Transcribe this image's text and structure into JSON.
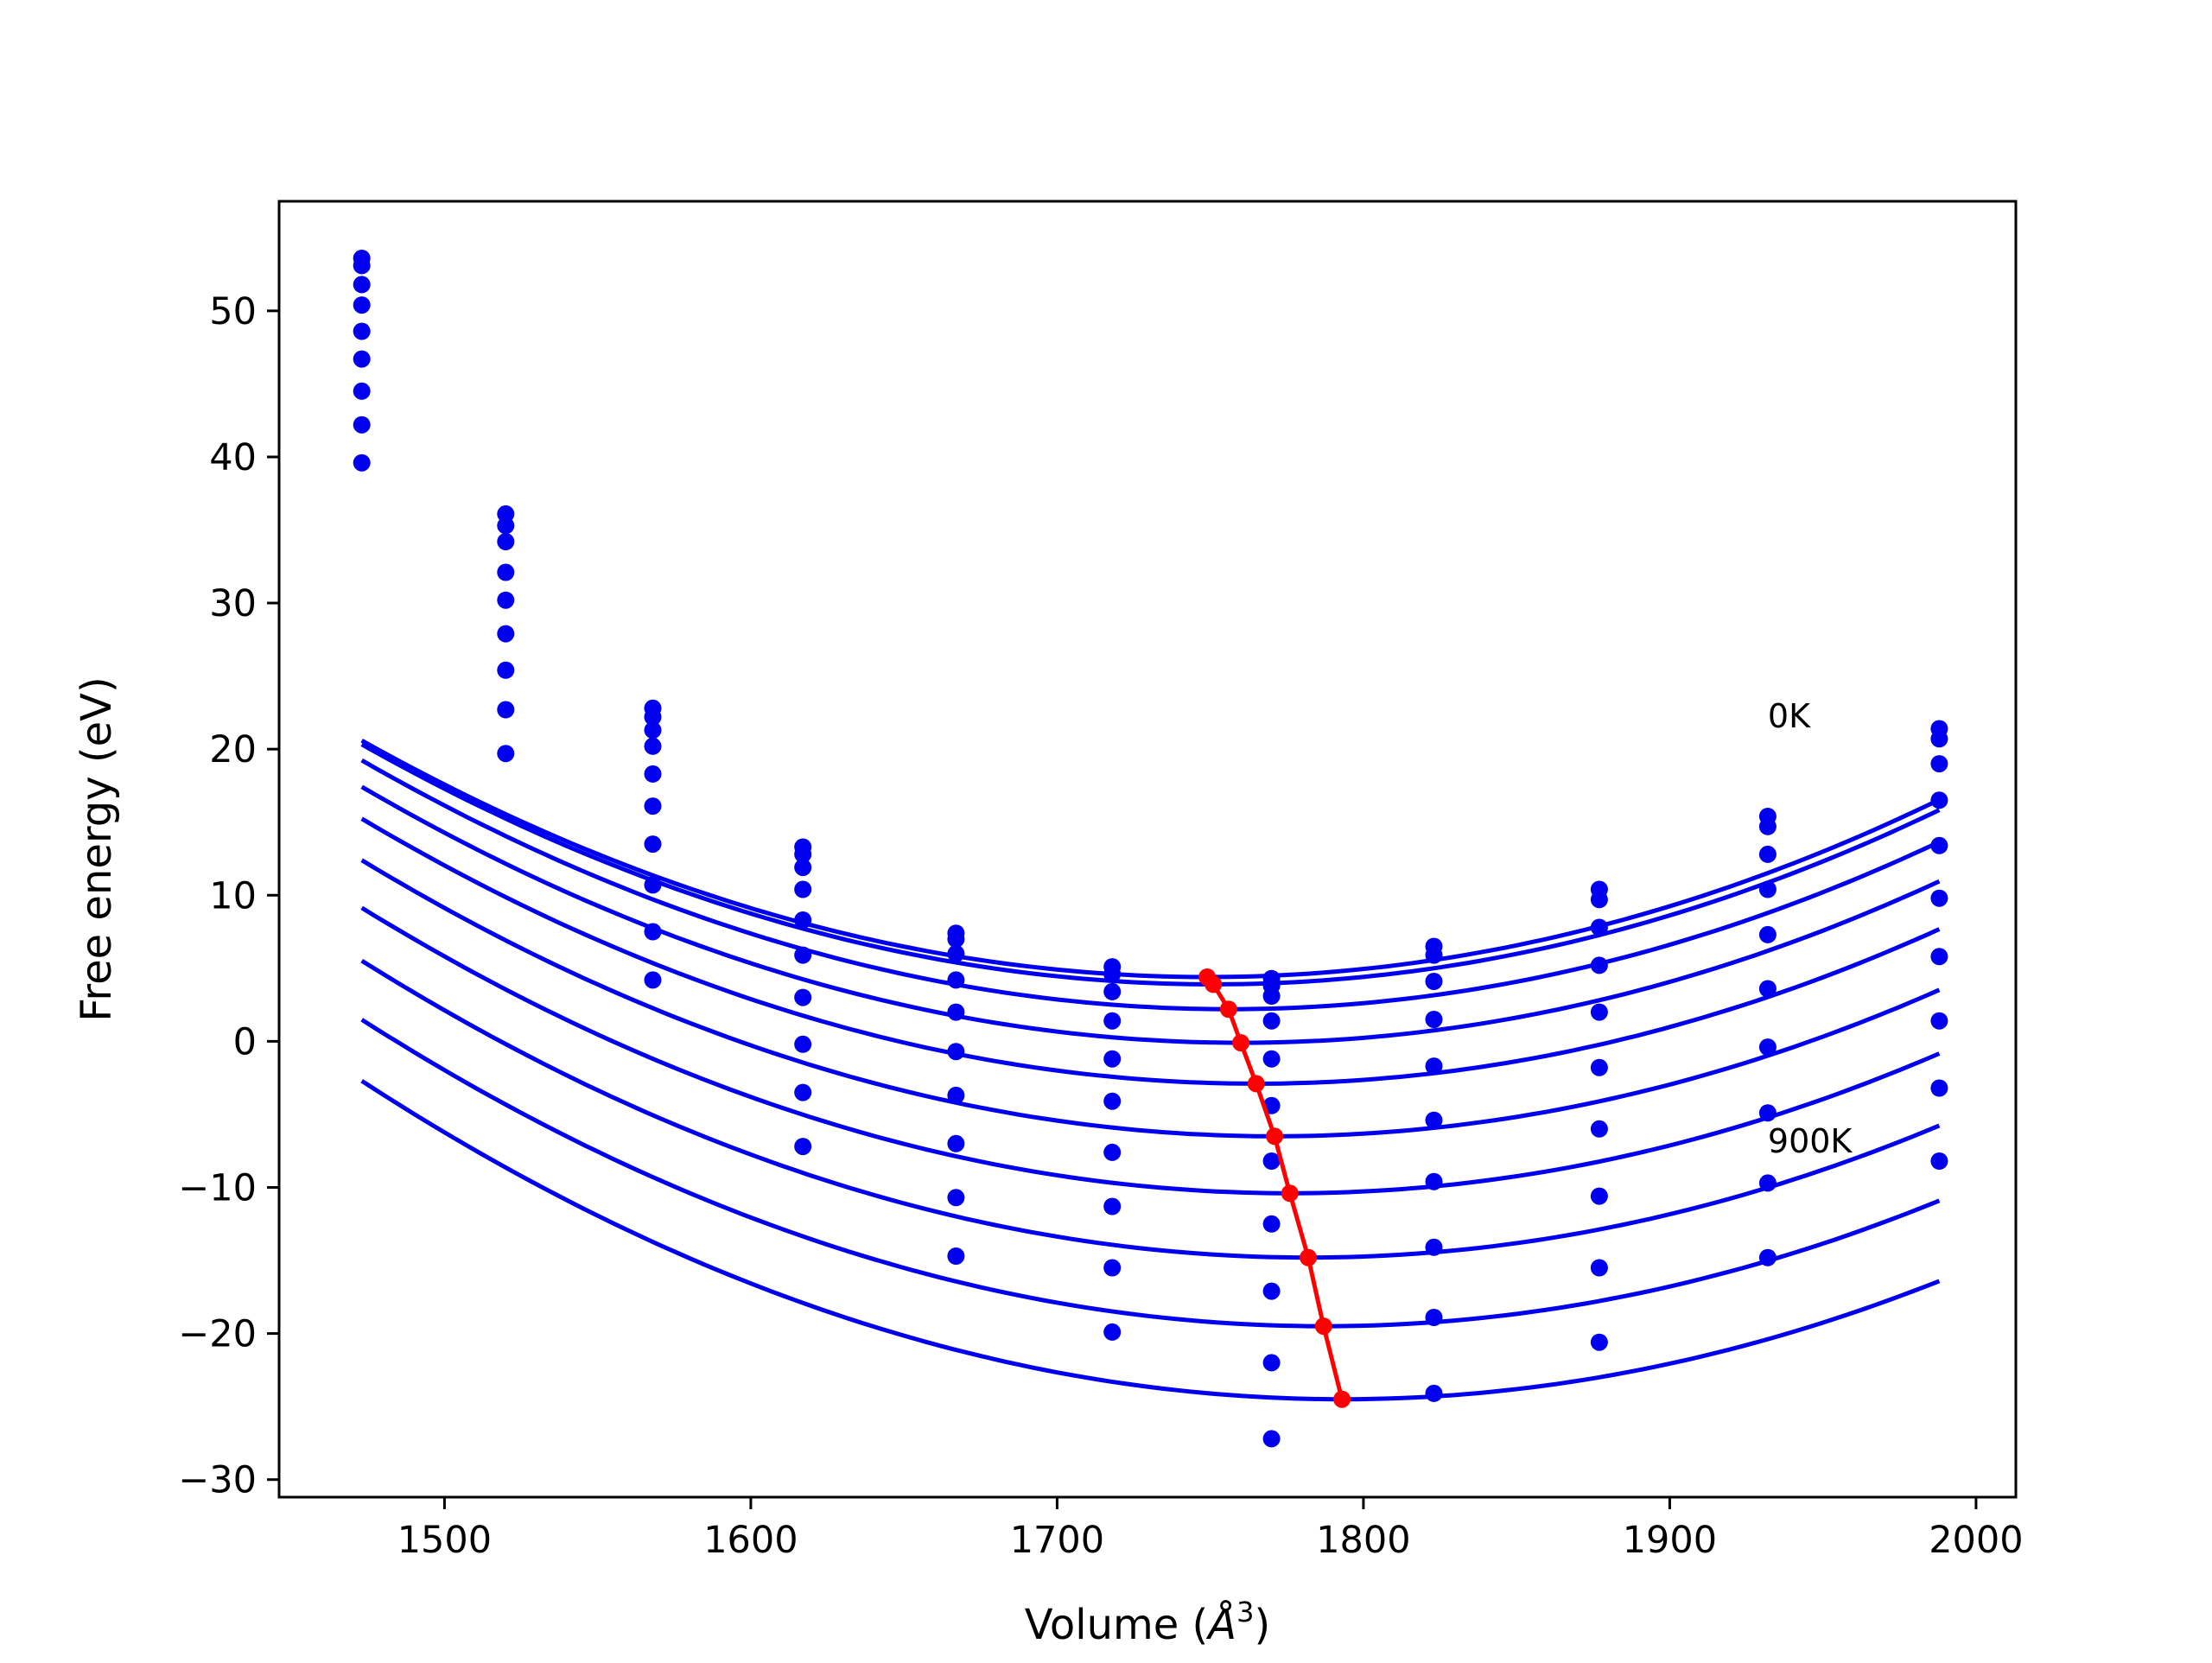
{
  "chart_data": {
    "type": "scatter",
    "title": "",
    "xlabel_prefix": "Volume (",
    "xlabel_symbol": "Å",
    "xlabel_exponent": "3",
    "xlabel_suffix": ")",
    "ylabel": "Free energy (eV)",
    "xlim": [
      1446,
      2013
    ],
    "ylim": [
      -31.2,
      57.5
    ],
    "xticks": [
      1500,
      1600,
      1700,
      1800,
      1900,
      2000
    ],
    "yticks": [
      -30,
      -20,
      -10,
      0,
      10,
      20,
      30,
      40,
      50
    ],
    "ytick_labels": [
      "−30",
      "−20",
      "−10",
      "0",
      "10",
      "20",
      "30",
      "40",
      "50"
    ],
    "grid": false,
    "legend": "none",
    "colors": {
      "curves": "#0000ee",
      "minima": "#ff0000"
    },
    "annotations": [
      {
        "text": "0K",
        "x": 1932,
        "y": 21.5
      },
      {
        "text": "900K",
        "x": 1932,
        "y": -7.6
      }
    ],
    "volumes": [
      1473,
      1520,
      1568,
      1617,
      1667,
      1718,
      1770,
      1823,
      1877,
      1932,
      1988
    ],
    "series": [
      {
        "values": [
          53.6,
          36.1,
          22.8,
          13.3,
          7.4,
          5.1,
          4.3,
          6.5,
          10.4,
          15.4,
          21.4
        ],
        "fit_a": 0.0002125,
        "fit_v0": 1749,
        "fit_e0": 4.4
      },
      {
        "values": [
          53.1,
          35.3,
          22.2,
          12.8,
          7.0,
          4.6,
          3.8,
          5.9,
          9.7,
          14.7,
          20.7
        ],
        "fit_a": 0.0002125,
        "fit_v0": 1751,
        "fit_e0": 3.9
      },
      {
        "values": [
          51.8,
          34.2,
          21.3,
          11.9,
          6.0,
          3.4,
          3.1,
          4.1,
          7.8,
          12.8,
          19.0
        ],
        "fit_a": 0.0002127,
        "fit_v0": 1756,
        "fit_e0": 2.2
      },
      {
        "values": [
          50.4,
          32.1,
          20.2,
          10.4,
          4.2,
          1.4,
          1.4,
          1.5,
          5.2,
          10.4,
          16.5
        ],
        "fit_a": 0.0002127,
        "fit_v0": 1760,
        "fit_e0": -0.1
      },
      {
        "values": [
          48.6,
          30.2,
          18.3,
          8.3,
          2.0,
          -1.2,
          -1.2,
          -1.7,
          2.0,
          7.3,
          13.4
        ],
        "fit_a": 0.0002127,
        "fit_v0": 1765,
        "fit_e0": -2.9
      },
      {
        "values": [
          46.7,
          27.9,
          16.1,
          5.9,
          -0.7,
          -4.1,
          -4.4,
          -5.4,
          -1.8,
          3.6,
          9.8
        ],
        "fit_a": 0.0002128,
        "fit_v0": 1771,
        "fit_e0": -6.5
      },
      {
        "values": [
          44.5,
          25.4,
          13.5,
          3.0,
          -3.7,
          -7.6,
          -8.2,
          -9.6,
          -6.0,
          -0.4,
          5.8
        ],
        "fit_a": 0.0002128,
        "fit_v0": 1776,
        "fit_e0": -10.4
      },
      {
        "values": [
          42.2,
          22.7,
          10.7,
          -0.2,
          -7.0,
          -11.3,
          -12.5,
          -14.1,
          -10.6,
          -4.9,
          1.4
        ],
        "fit_a": 0.0002128,
        "fit_v0": 1782,
        "fit_e0": -14.8
      },
      {
        "values": [
          39.6,
          19.7,
          7.5,
          -3.5,
          -10.7,
          -15.5,
          -17.1,
          -18.9,
          -15.5,
          -9.7,
          -3.2
        ],
        "fit_a": 0.0002128,
        "fit_v0": 1787,
        "fit_e0": -19.5
      },
      {
        "values": [
          null,
          null,
          4.2,
          -7.2,
          -14.7,
          -19.9,
          -22.0,
          -24.1,
          -20.6,
          -14.8,
          -8.2
        ],
        "fit_a": 0.0002128,
        "fit_v0": 1793,
        "fit_e0": -24.5
      },
      {
        "values": [
          null,
          null,
          null,
          null,
          null,
          null,
          -27.2,
          null,
          null,
          null,
          null
        ]
      }
    ],
    "minima": {
      "x": [
        1749,
        1751,
        1756,
        1760,
        1765,
        1771,
        1776,
        1782,
        1787,
        1793
      ],
      "y": [
        4.4,
        3.9,
        2.2,
        -0.1,
        -2.9,
        -6.5,
        -10.4,
        -14.8,
        -19.5,
        -24.5
      ]
    }
  }
}
